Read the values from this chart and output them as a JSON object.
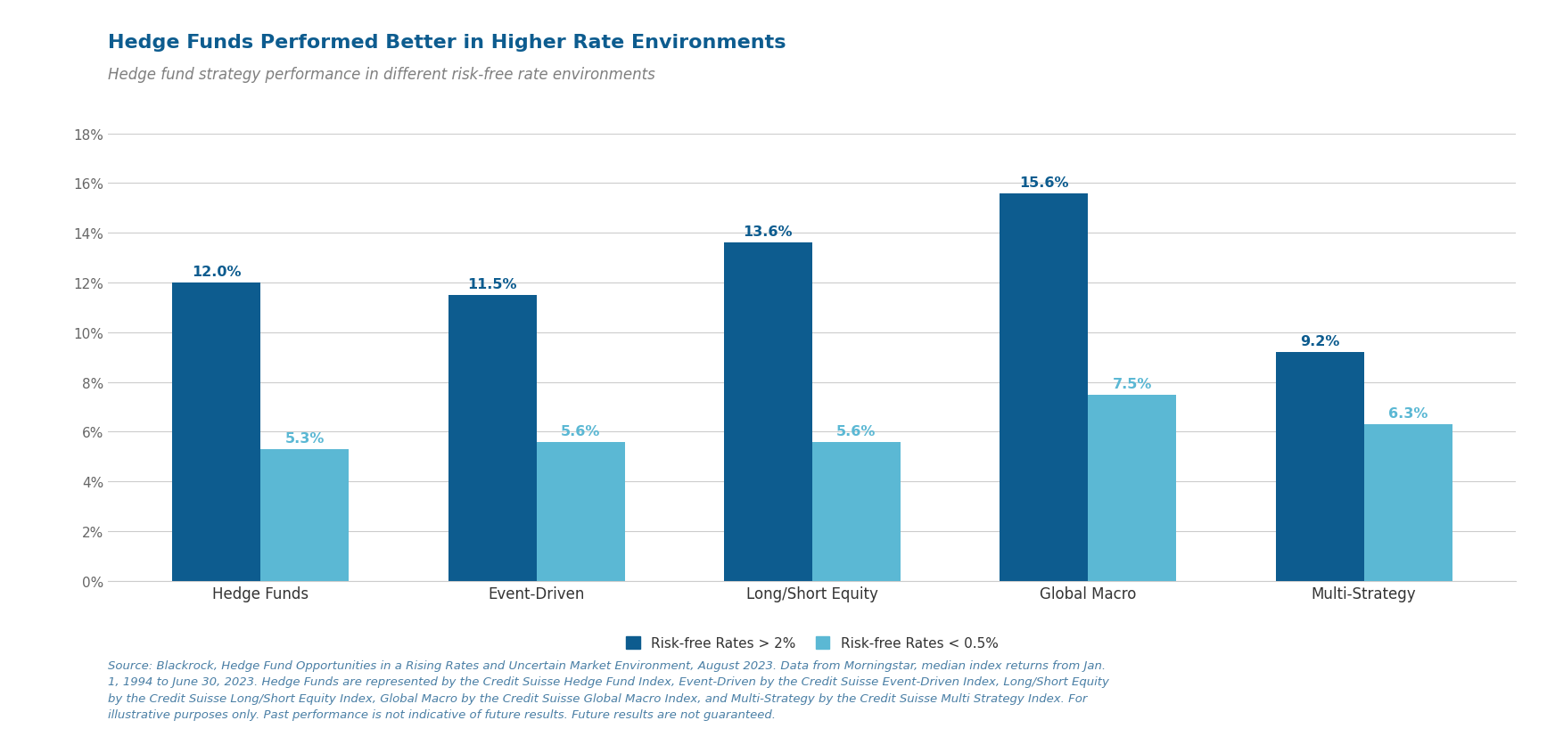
{
  "title": "Hedge Funds Performed Better in Higher Rate Environments",
  "subtitle": "Hedge fund strategy performance in different risk-free rate environments",
  "categories": [
    "Hedge Funds",
    "Event-Driven",
    "Long/Short Equity",
    "Global Macro",
    "Multi-Strategy"
  ],
  "high_rate_values": [
    12.0,
    11.5,
    13.6,
    15.6,
    9.2
  ],
  "low_rate_values": [
    5.3,
    5.6,
    5.6,
    7.5,
    6.3
  ],
  "high_rate_color": "#0D5C8F",
  "low_rate_color": "#5BB8D4",
  "high_rate_label": "Risk-free Rates > 2%",
  "low_rate_label": "Risk-free Rates < 0.5%",
  "ylim": [
    0,
    18
  ],
  "yticks": [
    0,
    2,
    4,
    6,
    8,
    10,
    12,
    14,
    16,
    18
  ],
  "ytick_labels": [
    "0%",
    "2%",
    "4%",
    "6%",
    "8%",
    "10%",
    "12%",
    "14%",
    "16%",
    "18%"
  ],
  "background_color": "#FFFFFF",
  "title_color": "#0D5C8F",
  "subtitle_color": "#7F7F7F",
  "bar_value_fontsize": 11.5,
  "title_fontsize": 16,
  "subtitle_fontsize": 12,
  "tick_fontsize": 11,
  "legend_fontsize": 11,
  "bar_width": 0.32,
  "footnote_line1": "Source: Blackrock, Hedge Fund Opportunities in a Rising Rates and Uncertain Market Environment, August 2023. Data from Morningstar, median index returns from Jan.",
  "footnote_line2": "1, 1994 to June 30, 2023. Hedge Funds are represented by the Credit Suisse Hedge Fund Index, Event-Driven by the Credit Suisse Event-Driven Index, Long/Short Equity",
  "footnote_line3": "by the Credit Suisse Long/Short Equity Index, Global Macro by the Credit Suisse Global Macro Index, and Multi-Strategy by the Credit Suisse Multi Strategy Index. For",
  "footnote_line4": "illustrative purposes only. Past performance is not indicative of future results. Future results are not guaranteed.",
  "footnote_color": "#4A7FA5",
  "footnote_fontsize": 9.5
}
